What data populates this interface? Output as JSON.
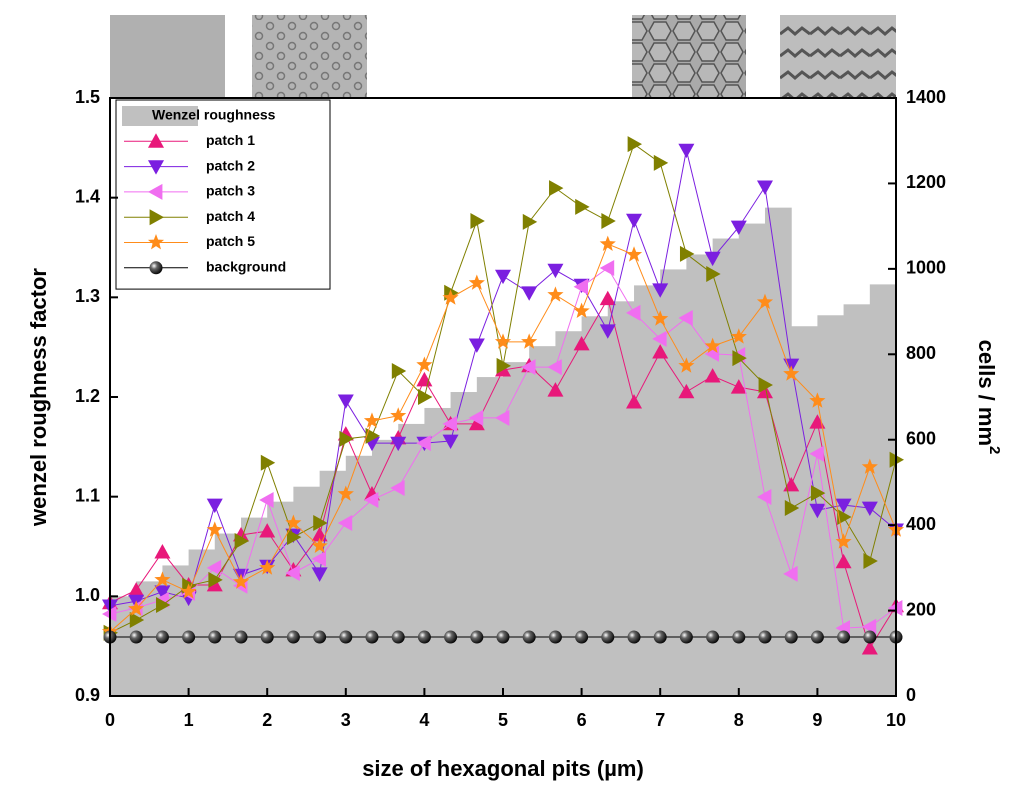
{
  "chart_data": {
    "type": "combo",
    "xlabel": "size of hexagonal pits (µm)",
    "ylabel": "wenzel roughness factor",
    "y2label": "cells / mm",
    "y2label_sup": "2",
    "xlim": [
      0,
      10
    ],
    "xticks": [
      0,
      1,
      2,
      3,
      4,
      5,
      6,
      7,
      8,
      9,
      10
    ],
    "ylim": [
      0.9,
      1.5
    ],
    "yticks": [
      0.9,
      {
        "value": 1,
        "label": "1.0"
      },
      1.1,
      1.2,
      1.3,
      1.4,
      1.5
    ],
    "y2lim": [
      0,
      1400
    ],
    "y2ticks": [
      0,
      200,
      400,
      600,
      800,
      1000,
      1200,
      1400
    ],
    "legend": "upper left",
    "x": [
      0,
      0.333,
      0.667,
      1,
      1.333,
      1.667,
      2,
      2.333,
      2.667,
      3,
      3.333,
      3.667,
      4,
      4.333,
      4.667,
      5,
      5.333,
      5.667,
      6,
      6.333,
      6.667,
      7,
      7.333,
      7.667,
      8,
      8.333,
      8.667,
      9,
      9.333,
      9.667,
      10
    ],
    "bins": [
      0,
      0.333,
      0.667,
      1,
      1.333,
      1.667,
      2,
      2.333,
      2.667,
      3,
      3.333,
      3.667,
      4,
      4.333,
      4.667,
      5,
      5.333,
      5.667,
      6,
      6.333,
      6.667,
      7,
      7.333,
      7.667,
      8,
      8.333,
      8.667,
      9,
      9.333,
      9.667,
      10
    ],
    "series": [
      {
        "name": "Wenzel roughness",
        "type": "histogram",
        "color": "#c0c0c0",
        "axis": "y",
        "values": [
          1.0,
          1.015,
          1.031,
          1.047,
          1.063,
          1.079,
          1.095,
          1.11,
          1.126,
          1.141,
          1.157,
          1.173,
          1.189,
          1.205,
          1.22,
          1.235,
          1.251,
          1.266,
          1.281,
          1.296,
          1.312,
          1.328,
          1.343,
          1.359,
          1.374,
          1.39,
          1.271,
          1.282,
          1.293,
          1.313
        ]
      },
      {
        "name": "patch 1",
        "type": "line",
        "marker": "triangle-up",
        "color": "#e8187a",
        "axis": "y2",
        "values": [
          218,
          248,
          337,
          260,
          260,
          377,
          386,
          295,
          377,
          613,
          473,
          604,
          740,
          637,
          637,
          763,
          773,
          716,
          824,
          930,
          688,
          805,
          712,
          749,
          723,
          712,
          494,
          641,
          314,
          112,
          211
        ]
      },
      {
        "name": "patch 2",
        "type": "line",
        "marker": "triangle-down",
        "color": "#7b1fe0",
        "axis": "y2",
        "values": [
          211,
          222,
          244,
          229,
          447,
          283,
          304,
          377,
          286,
          691,
          592,
          592,
          592,
          597,
          822,
          983,
          944,
          997,
          962,
          855,
          1114,
          951,
          1278,
          1025,
          1098,
          1192,
          775,
          435,
          447,
          440,
          389
        ]
      },
      {
        "name": "patch 3",
        "type": "line",
        "marker": "triangle-left",
        "color": "#f06ef0",
        "axis": "y2",
        "values": [
          192,
          206,
          225,
          241,
          300,
          258,
          459,
          288,
          321,
          405,
          459,
          487,
          592,
          637,
          651,
          651,
          770,
          770,
          958,
          1002,
          897,
          836,
          885,
          801,
          798,
          466,
          286,
          567,
          159,
          162,
          206
        ]
      },
      {
        "name": "patch 4",
        "type": "line",
        "marker": "triangle-right",
        "color": "#808000",
        "axis": "y2",
        "values": [
          148,
          178,
          213,
          258,
          272,
          363,
          546,
          372,
          405,
          602,
          609,
          761,
          700,
          944,
          1112,
          773,
          1110,
          1189,
          1145,
          1112,
          1292,
          1248,
          1035,
          988,
          791,
          728,
          440,
          475,
          419,
          316,
          553
        ]
      },
      {
        "name": "patch 5",
        "type": "line",
        "marker": "star",
        "color": "#ff8c1a",
        "axis": "y2",
        "values": [
          150,
          204,
          272,
          244,
          389,
          267,
          300,
          405,
          351,
          473,
          644,
          656,
          775,
          932,
          967,
          829,
          829,
          939,
          901,
          1058,
          1033,
          883,
          773,
          819,
          841,
          922,
          754,
          691,
          361,
          536,
          389
        ]
      },
      {
        "name": "background",
        "type": "line",
        "marker": "sphere",
        "color": "#000000",
        "axis": "y2",
        "values": [
          138,
          138,
          138,
          138,
          138,
          138,
          138,
          138,
          138,
          138,
          138,
          138,
          138,
          138,
          138,
          138,
          138,
          138,
          138,
          138,
          138,
          138,
          138,
          138,
          138,
          138,
          138,
          138,
          138,
          138,
          138
        ]
      }
    ]
  }
}
